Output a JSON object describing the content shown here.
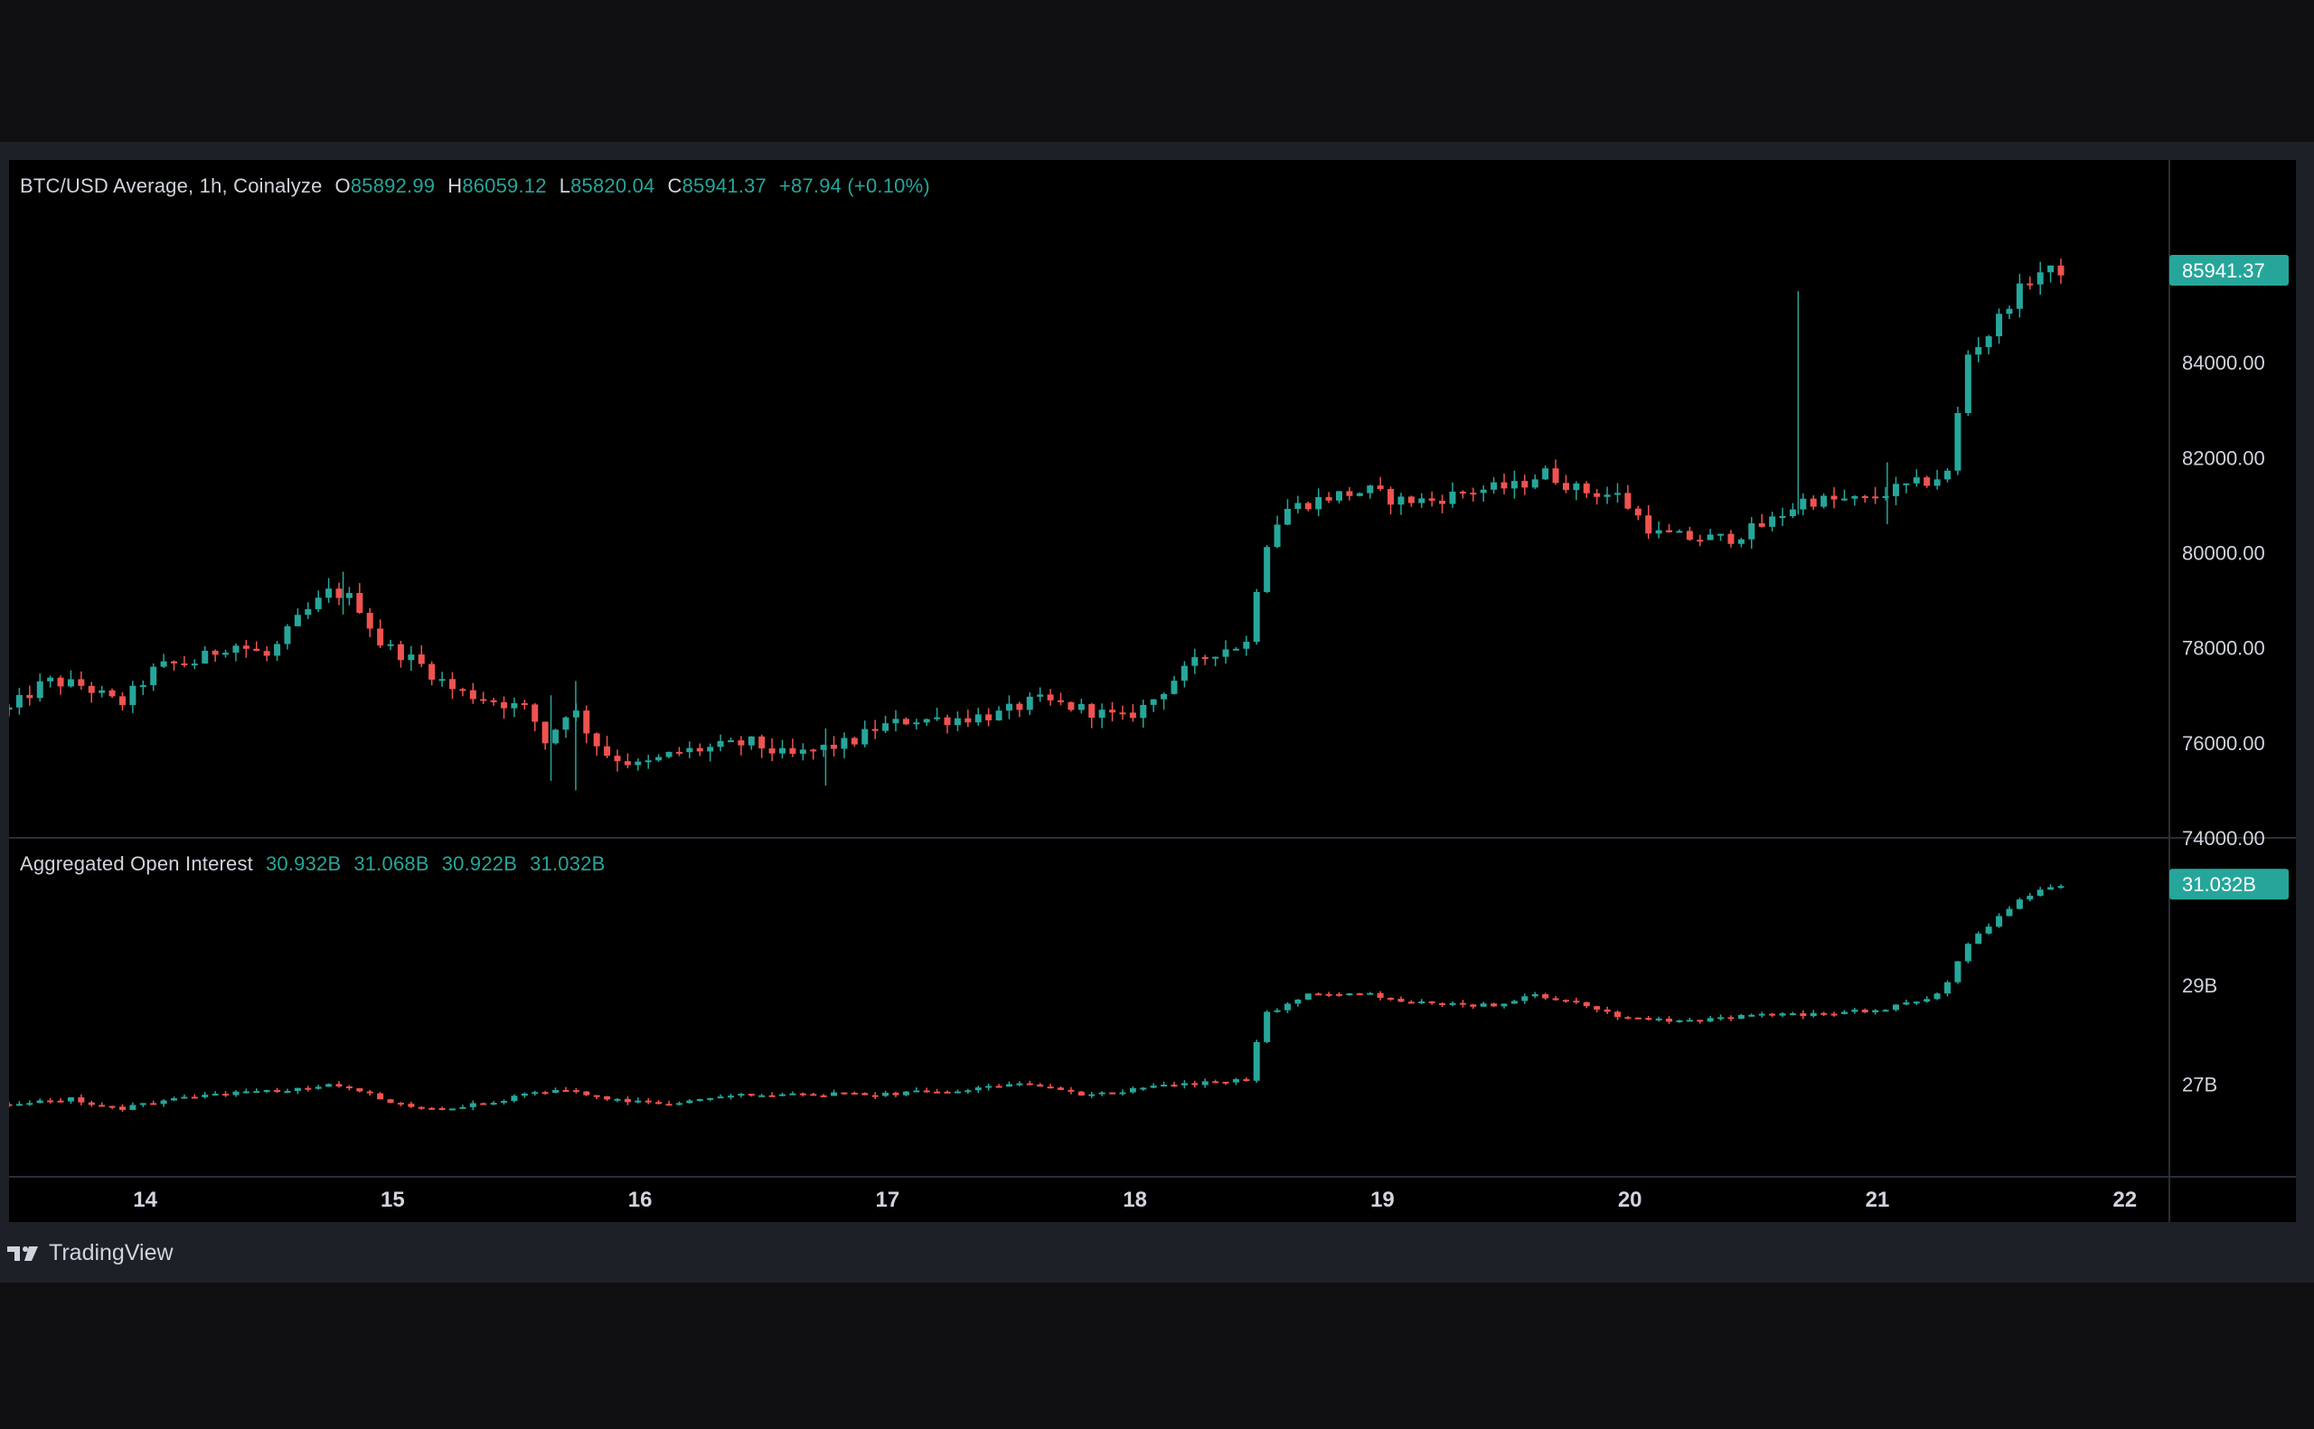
{
  "legend": {
    "symbol": "BTC/USD Average, 1h, Coinalyze",
    "o_label": "O",
    "o_value": "85892.99",
    "h_label": "H",
    "h_value": "86059.12",
    "l_label": "L",
    "l_value": "85820.04",
    "c_label": "C",
    "c_value": "85941.37",
    "change": "+87.94 (+0.10%)",
    "oi_name": "Aggregated Open Interest",
    "oi_o": "30.932B",
    "oi_h": "31.068B",
    "oi_l": "30.922B",
    "oi_c": "31.032B"
  },
  "brand": "TradingView",
  "colors": {
    "up": "#26a69a",
    "down": "#ef5350",
    "background": "#000000",
    "frame": "#1d2027",
    "axis_text": "#d1d4dc"
  },
  "chart_data": [
    {
      "type": "candlestick",
      "title": "BTC/USD Average, 1h, Coinalyze",
      "ylim": [
        74000,
        87500
      ],
      "yticks": [
        "84000.00",
        "82000.00",
        "80000.00",
        "78000.00",
        "76000.00",
        "74000.00"
      ],
      "last_price_label": "85941.37",
      "x_dates": [
        "14",
        "15",
        "16",
        "17",
        "18",
        "19",
        "20",
        "21",
        "22"
      ],
      "x_range_days": [
        13.45,
        22.18
      ],
      "series": [
        {
          "kind": "close_path",
          "points": [
            [
              13.45,
              76700
            ],
            [
              13.6,
              77300
            ],
            [
              13.75,
              77200
            ],
            [
              13.9,
              76800
            ],
            [
              14.05,
              77600
            ],
            [
              14.2,
              77700
            ],
            [
              14.35,
              78100
            ],
            [
              14.5,
              77800
            ],
            [
              14.6,
              78500
            ],
            [
              14.75,
              79200
            ],
            [
              14.85,
              79000
            ],
            [
              14.95,
              78100
            ],
            [
              15.1,
              77700
            ],
            [
              15.25,
              77100
            ],
            [
              15.4,
              76900
            ],
            [
              15.55,
              76700
            ],
            [
              15.62,
              76000
            ],
            [
              15.72,
              76800
            ],
            [
              15.78,
              76300
            ],
            [
              15.85,
              75800
            ],
            [
              16.0,
              75500
            ],
            [
              16.15,
              75800
            ],
            [
              16.3,
              75900
            ],
            [
              16.45,
              76000
            ],
            [
              16.6,
              75700
            ],
            [
              16.75,
              75900
            ],
            [
              16.85,
              76000
            ],
            [
              16.95,
              76300
            ],
            [
              17.1,
              76500
            ],
            [
              17.25,
              76500
            ],
            [
              17.45,
              76600
            ],
            [
              17.6,
              76900
            ],
            [
              17.8,
              76700
            ],
            [
              17.95,
              76500
            ],
            [
              18.05,
              76800
            ],
            [
              18.15,
              77300
            ],
            [
              18.3,
              77900
            ],
            [
              18.45,
              78100
            ],
            [
              18.52,
              80100
            ],
            [
              18.6,
              80900
            ],
            [
              18.8,
              81200
            ],
            [
              18.95,
              81300
            ],
            [
              19.05,
              81100
            ],
            [
              19.2,
              81100
            ],
            [
              19.35,
              81300
            ],
            [
              19.55,
              81400
            ],
            [
              19.65,
              81700
            ],
            [
              19.8,
              81300
            ],
            [
              19.95,
              81200
            ],
            [
              20.1,
              80400
            ],
            [
              20.25,
              80300
            ],
            [
              20.4,
              80300
            ],
            [
              20.55,
              80600
            ],
            [
              20.7,
              81100
            ],
            [
              20.85,
              81100
            ],
            [
              20.95,
              81100
            ],
            [
              21.05,
              81300
            ],
            [
              21.2,
              81500
            ],
            [
              21.3,
              81700
            ],
            [
              21.35,
              84100
            ],
            [
              21.45,
              84600
            ],
            [
              21.55,
              85400
            ],
            [
              21.65,
              85900
            ],
            [
              21.75,
              85941.37
            ]
          ],
          "wicks": [
            [
              15.74,
              75000,
              77300
            ],
            [
              16.75,
              75100,
              76300
            ],
            [
              20.68,
              80800,
              85500
            ],
            [
              21.04,
              80600,
              81900
            ],
            [
              14.8,
              78700,
              79600
            ],
            [
              15.64,
              75200,
              77000
            ]
          ]
        }
      ]
    },
    {
      "type": "candlestick",
      "title": "Aggregated Open Interest",
      "ylim": [
        25.5,
        31.6
      ],
      "yticks": [
        "29B",
        "27B"
      ],
      "last_price_label": "31.032B",
      "series": [
        {
          "kind": "close_path",
          "points": [
            [
              13.45,
              26.6
            ],
            [
              13.7,
              26.7
            ],
            [
              13.9,
              26.5
            ],
            [
              14.1,
              26.7
            ],
            [
              14.3,
              26.8
            ],
            [
              14.6,
              26.9
            ],
            [
              14.8,
              27.0
            ],
            [
              15.0,
              26.6
            ],
            [
              15.2,
              26.5
            ],
            [
              15.35,
              26.6
            ],
            [
              15.55,
              26.8
            ],
            [
              15.7,
              26.9
            ],
            [
              15.85,
              26.7
            ],
            [
              16.1,
              26.6
            ],
            [
              16.4,
              26.8
            ],
            [
              16.75,
              26.8
            ],
            [
              17.0,
              26.8
            ],
            [
              17.3,
              26.9
            ],
            [
              17.55,
              27.0
            ],
            [
              17.8,
              26.8
            ],
            [
              18.0,
              26.9
            ],
            [
              18.2,
              27.0
            ],
            [
              18.45,
              27.1
            ],
            [
              18.52,
              28.4
            ],
            [
              18.7,
              28.8
            ],
            [
              18.95,
              28.8
            ],
            [
              19.2,
              28.6
            ],
            [
              19.45,
              28.6
            ],
            [
              19.6,
              28.8
            ],
            [
              19.8,
              28.6
            ],
            [
              20.0,
              28.3
            ],
            [
              20.3,
              28.3
            ],
            [
              20.55,
              28.4
            ],
            [
              20.75,
              28.4
            ],
            [
              21.0,
              28.5
            ],
            [
              21.2,
              28.7
            ],
            [
              21.3,
              29.1
            ],
            [
              21.35,
              29.8
            ],
            [
              21.5,
              30.4
            ],
            [
              21.6,
              30.8
            ],
            [
              21.75,
              31.032
            ]
          ]
        }
      ]
    }
  ]
}
